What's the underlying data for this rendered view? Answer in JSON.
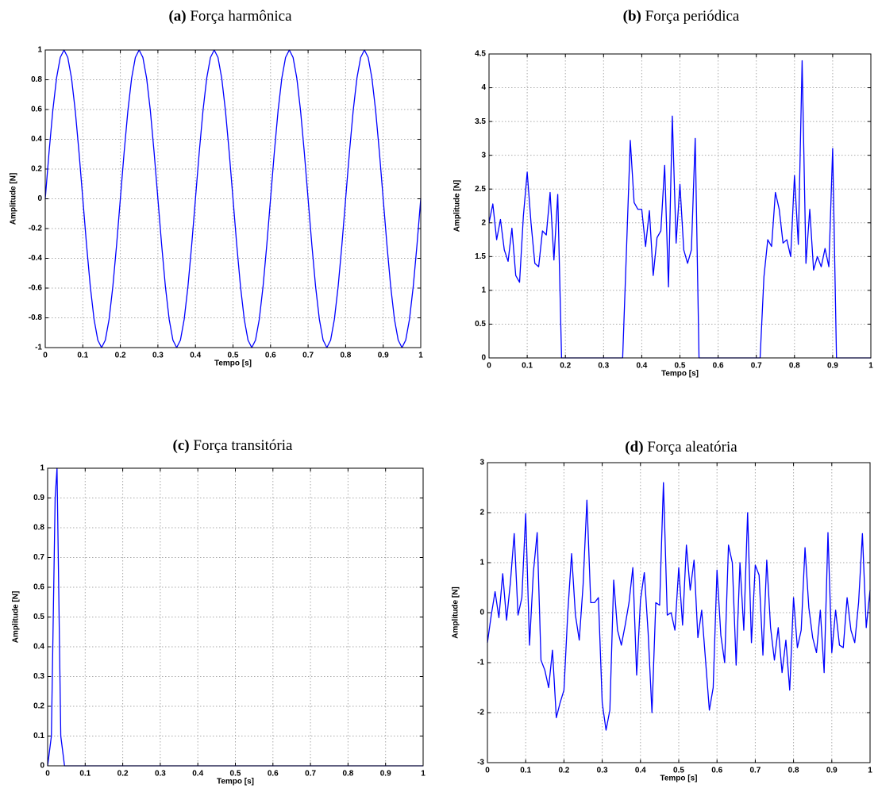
{
  "chart_data": [
    {
      "type": "line",
      "panel": "(a)",
      "title": "Força harmônica",
      "x_label": "Tempo [s]",
      "y_label": "Amplitude [N]",
      "color": "#0000ff",
      "grid": true,
      "xlim": [
        0,
        1
      ],
      "xticks": [
        0,
        0.1,
        0.2,
        0.3,
        0.4,
        0.5,
        0.6,
        0.7,
        0.8,
        0.9,
        1
      ],
      "ylim": [
        -1,
        1
      ],
      "yticks": [
        -1,
        -0.8,
        -0.6,
        -0.4,
        -0.2,
        0,
        0.2,
        0.4,
        0.6,
        0.8,
        1
      ],
      "x": [
        0,
        0.01,
        0.02,
        0.03,
        0.04,
        0.05,
        0.06,
        0.07,
        0.08,
        0.09,
        0.1,
        0.11,
        0.12,
        0.13,
        0.14,
        0.15,
        0.16,
        0.17,
        0.18,
        0.19,
        0.2,
        0.21,
        0.22,
        0.23,
        0.24,
        0.25,
        0.26,
        0.27,
        0.28,
        0.29,
        0.3,
        0.31,
        0.32,
        0.33,
        0.34,
        0.35,
        0.36,
        0.37,
        0.38,
        0.39,
        0.4,
        0.41,
        0.42,
        0.43,
        0.44,
        0.45,
        0.46,
        0.47,
        0.48,
        0.49,
        0.5,
        0.51,
        0.52,
        0.53,
        0.54,
        0.55,
        0.56,
        0.57,
        0.58,
        0.59,
        0.6,
        0.61,
        0.62,
        0.63,
        0.64,
        0.65,
        0.66,
        0.67,
        0.68,
        0.69,
        0.7,
        0.71,
        0.72,
        0.73,
        0.74,
        0.75,
        0.76,
        0.77,
        0.78,
        0.79,
        0.8,
        0.81,
        0.82,
        0.83,
        0.84,
        0.85,
        0.86,
        0.87,
        0.88,
        0.89,
        0.9,
        0.91,
        0.92,
        0.93,
        0.94,
        0.95,
        0.96,
        0.97,
        0.98,
        0.99,
        1
      ],
      "values": [
        0,
        0.31,
        0.59,
        0.81,
        0.95,
        1,
        0.95,
        0.81,
        0.59,
        0.31,
        0,
        -0.31,
        -0.59,
        -0.81,
        -0.95,
        -1,
        -0.95,
        -0.81,
        -0.59,
        -0.31,
        0,
        0.31,
        0.59,
        0.81,
        0.95,
        1,
        0.95,
        0.81,
        0.59,
        0.31,
        0,
        -0.31,
        -0.59,
        -0.81,
        -0.95,
        -1,
        -0.95,
        -0.81,
        -0.59,
        -0.31,
        0,
        0.31,
        0.59,
        0.81,
        0.95,
        1,
        0.95,
        0.81,
        0.59,
        0.31,
        0,
        -0.31,
        -0.59,
        -0.81,
        -0.95,
        -1,
        -0.95,
        -0.81,
        -0.59,
        -0.31,
        0,
        0.31,
        0.59,
        0.81,
        0.95,
        1,
        0.95,
        0.81,
        0.59,
        0.31,
        0,
        -0.31,
        -0.59,
        -0.81,
        -0.95,
        -1,
        -0.95,
        -0.81,
        -0.59,
        -0.31,
        0,
        0.31,
        0.59,
        0.81,
        0.95,
        1,
        0.95,
        0.81,
        0.59,
        0.31,
        0,
        -0.31,
        -0.59,
        -0.81,
        -0.95,
        -1,
        -0.95,
        -0.81,
        -0.59,
        -0.31,
        0
      ]
    },
    {
      "type": "line",
      "panel": "(b)",
      "title": "Força periódica",
      "x_label": "Tempo [s]",
      "y_label": "Amplitude [N]",
      "color": "#0000ff",
      "grid": true,
      "xlim": [
        0,
        1
      ],
      "xticks": [
        0,
        0.1,
        0.2,
        0.3,
        0.4,
        0.5,
        0.6,
        0.7,
        0.8,
        0.9,
        1
      ],
      "ylim": [
        0,
        4.5
      ],
      "yticks": [
        0,
        0.5,
        1,
        1.5,
        2,
        2.5,
        3,
        3.5,
        4,
        4.5
      ],
      "x": [
        0,
        0.01,
        0.02,
        0.03,
        0.04,
        0.05,
        0.06,
        0.07,
        0.08,
        0.09,
        0.1,
        0.11,
        0.12,
        0.13,
        0.14,
        0.15,
        0.16,
        0.17,
        0.18,
        0.19,
        0.2,
        0.21,
        0.22,
        0.23,
        0.24,
        0.25,
        0.26,
        0.27,
        0.28,
        0.29,
        0.3,
        0.31,
        0.32,
        0.33,
        0.34,
        0.35,
        0.36,
        0.37,
        0.38,
        0.39,
        0.4,
        0.41,
        0.42,
        0.43,
        0.44,
        0.45,
        0.46,
        0.47,
        0.48,
        0.49,
        0.5,
        0.51,
        0.52,
        0.53,
        0.54,
        0.55,
        0.56,
        0.57,
        0.58,
        0.59,
        0.6,
        0.61,
        0.62,
        0.63,
        0.64,
        0.65,
        0.66,
        0.67,
        0.68,
        0.69,
        0.7,
        0.71,
        0.72,
        0.73,
        0.74,
        0.75,
        0.76,
        0.77,
        0.78,
        0.79,
        0.8,
        0.81,
        0.82,
        0.83,
        0.84,
        0.85,
        0.86,
        0.87,
        0.88,
        0.89,
        0.9,
        0.91,
        0.92,
        0.93,
        0.94,
        0.95,
        0.96,
        0.97,
        0.98,
        0.99,
        1
      ],
      "values": [
        2.0,
        2.28,
        1.75,
        2.05,
        1.6,
        1.43,
        1.92,
        1.22,
        1.12,
        2.1,
        2.75,
        2.0,
        1.4,
        1.35,
        1.88,
        1.82,
        2.45,
        1.45,
        2.42,
        0,
        0,
        0,
        0,
        0,
        0,
        0,
        0,
        0,
        0,
        0,
        0,
        0,
        0,
        0,
        0,
        0,
        1.6,
        3.22,
        2.3,
        2.2,
        2.2,
        1.65,
        2.18,
        1.22,
        1.78,
        1.88,
        2.85,
        1.05,
        3.58,
        1.7,
        2.57,
        1.6,
        1.4,
        1.6,
        3.25,
        0,
        0,
        0,
        0,
        0,
        0,
        0,
        0,
        0,
        0,
        0,
        0,
        0,
        0,
        0,
        0,
        0,
        1.2,
        1.75,
        1.65,
        2.45,
        2.2,
        1.7,
        1.75,
        1.5,
        2.7,
        1.68,
        4.4,
        1.4,
        2.2,
        1.3,
        1.5,
        1.35,
        1.62,
        1.35,
        3.1,
        0,
        0,
        0,
        0,
        0,
        0,
        0,
        0,
        0,
        0
      ]
    },
    {
      "type": "line",
      "panel": "(c)",
      "title": "Força transitória",
      "x_label": "Tempo [s]",
      "y_label": "Amplitude [N]",
      "color": "#0000ff",
      "grid": true,
      "xlim": [
        0,
        1
      ],
      "xticks": [
        0,
        0.1,
        0.2,
        0.3,
        0.4,
        0.5,
        0.6,
        0.7,
        0.8,
        0.9,
        1
      ],
      "ylim": [
        0,
        1
      ],
      "yticks": [
        0,
        0.1,
        0.2,
        0.3,
        0.4,
        0.5,
        0.6,
        0.7,
        0.8,
        0.9,
        1
      ],
      "x": [
        0,
        0.01,
        0.02,
        0.025,
        0.035,
        0.045,
        1
      ],
      "values": [
        0,
        0.1,
        0.9,
        1,
        0.1,
        0,
        0
      ]
    },
    {
      "type": "line",
      "panel": "(d)",
      "title": "Força aleatória",
      "x_label": "Tempo [s]",
      "y_label": "Amplitude [N]",
      "color": "#0000ff",
      "grid": true,
      "xlim": [
        0,
        1
      ],
      "xticks": [
        0,
        0.1,
        0.2,
        0.3,
        0.4,
        0.5,
        0.6,
        0.7,
        0.8,
        0.9,
        1
      ],
      "ylim": [
        -3,
        3
      ],
      "yticks": [
        -3,
        -2,
        -1,
        0,
        1,
        2,
        3
      ],
      "x": [
        0,
        0.01,
        0.02,
        0.03,
        0.04,
        0.05,
        0.06,
        0.07,
        0.08,
        0.09,
        0.1,
        0.11,
        0.12,
        0.13,
        0.14,
        0.15,
        0.16,
        0.17,
        0.18,
        0.19,
        0.2,
        0.21,
        0.22,
        0.23,
        0.24,
        0.25,
        0.26,
        0.27,
        0.28,
        0.29,
        0.3,
        0.31,
        0.32,
        0.33,
        0.34,
        0.35,
        0.36,
        0.37,
        0.38,
        0.39,
        0.4,
        0.41,
        0.42,
        0.43,
        0.44,
        0.45,
        0.46,
        0.47,
        0.48,
        0.49,
        0.5,
        0.51,
        0.52,
        0.53,
        0.54,
        0.55,
        0.56,
        0.57,
        0.58,
        0.59,
        0.6,
        0.61,
        0.62,
        0.63,
        0.64,
        0.65,
        0.66,
        0.67,
        0.68,
        0.69,
        0.7,
        0.71,
        0.72,
        0.73,
        0.74,
        0.75,
        0.76,
        0.77,
        0.78,
        0.79,
        0.8,
        0.81,
        0.82,
        0.83,
        0.84,
        0.85,
        0.86,
        0.87,
        0.88,
        0.89,
        0.9,
        0.91,
        0.92,
        0.93,
        0.94,
        0.95,
        0.96,
        0.97,
        0.98,
        0.99,
        1
      ],
      "values": [
        -0.6,
        -0.05,
        0.42,
        -0.1,
        0.78,
        -0.15,
        0.6,
        1.58,
        -0.05,
        0.3,
        1.98,
        -0.65,
        0.8,
        1.6,
        -0.95,
        -1.15,
        -1.5,
        -0.75,
        -2.1,
        -1.8,
        -1.55,
        0.0,
        1.18,
        -0.05,
        -0.55,
        0.55,
        2.25,
        0.2,
        0.2,
        0.3,
        -1.8,
        -2.35,
        -1.95,
        0.65,
        -0.35,
        -0.65,
        -0.25,
        0.2,
        0.9,
        -1.25,
        0.25,
        0.8,
        -0.4,
        -2.0,
        0.2,
        0.15,
        2.6,
        -0.05,
        0.0,
        -0.35,
        0.9,
        -0.25,
        1.35,
        0.45,
        1.05,
        -0.5,
        0.05,
        -0.95,
        -1.95,
        -1.5,
        0.85,
        -0.45,
        -1.0,
        1.35,
        1.0,
        -1.05,
        1.0,
        -0.35,
        2.0,
        -0.6,
        0.95,
        0.75,
        -0.85,
        1.05,
        -0.3,
        -0.95,
        -0.3,
        -1.2,
        -0.55,
        -1.55,
        0.3,
        -0.7,
        -0.35,
        1.3,
        0.1,
        -0.5,
        -0.8,
        0.05,
        -1.2,
        1.6,
        -0.8,
        0.05,
        -0.65,
        -0.7,
        0.3,
        -0.35,
        -0.6,
        0.2,
        1.58,
        -0.3,
        0.45
      ]
    }
  ]
}
